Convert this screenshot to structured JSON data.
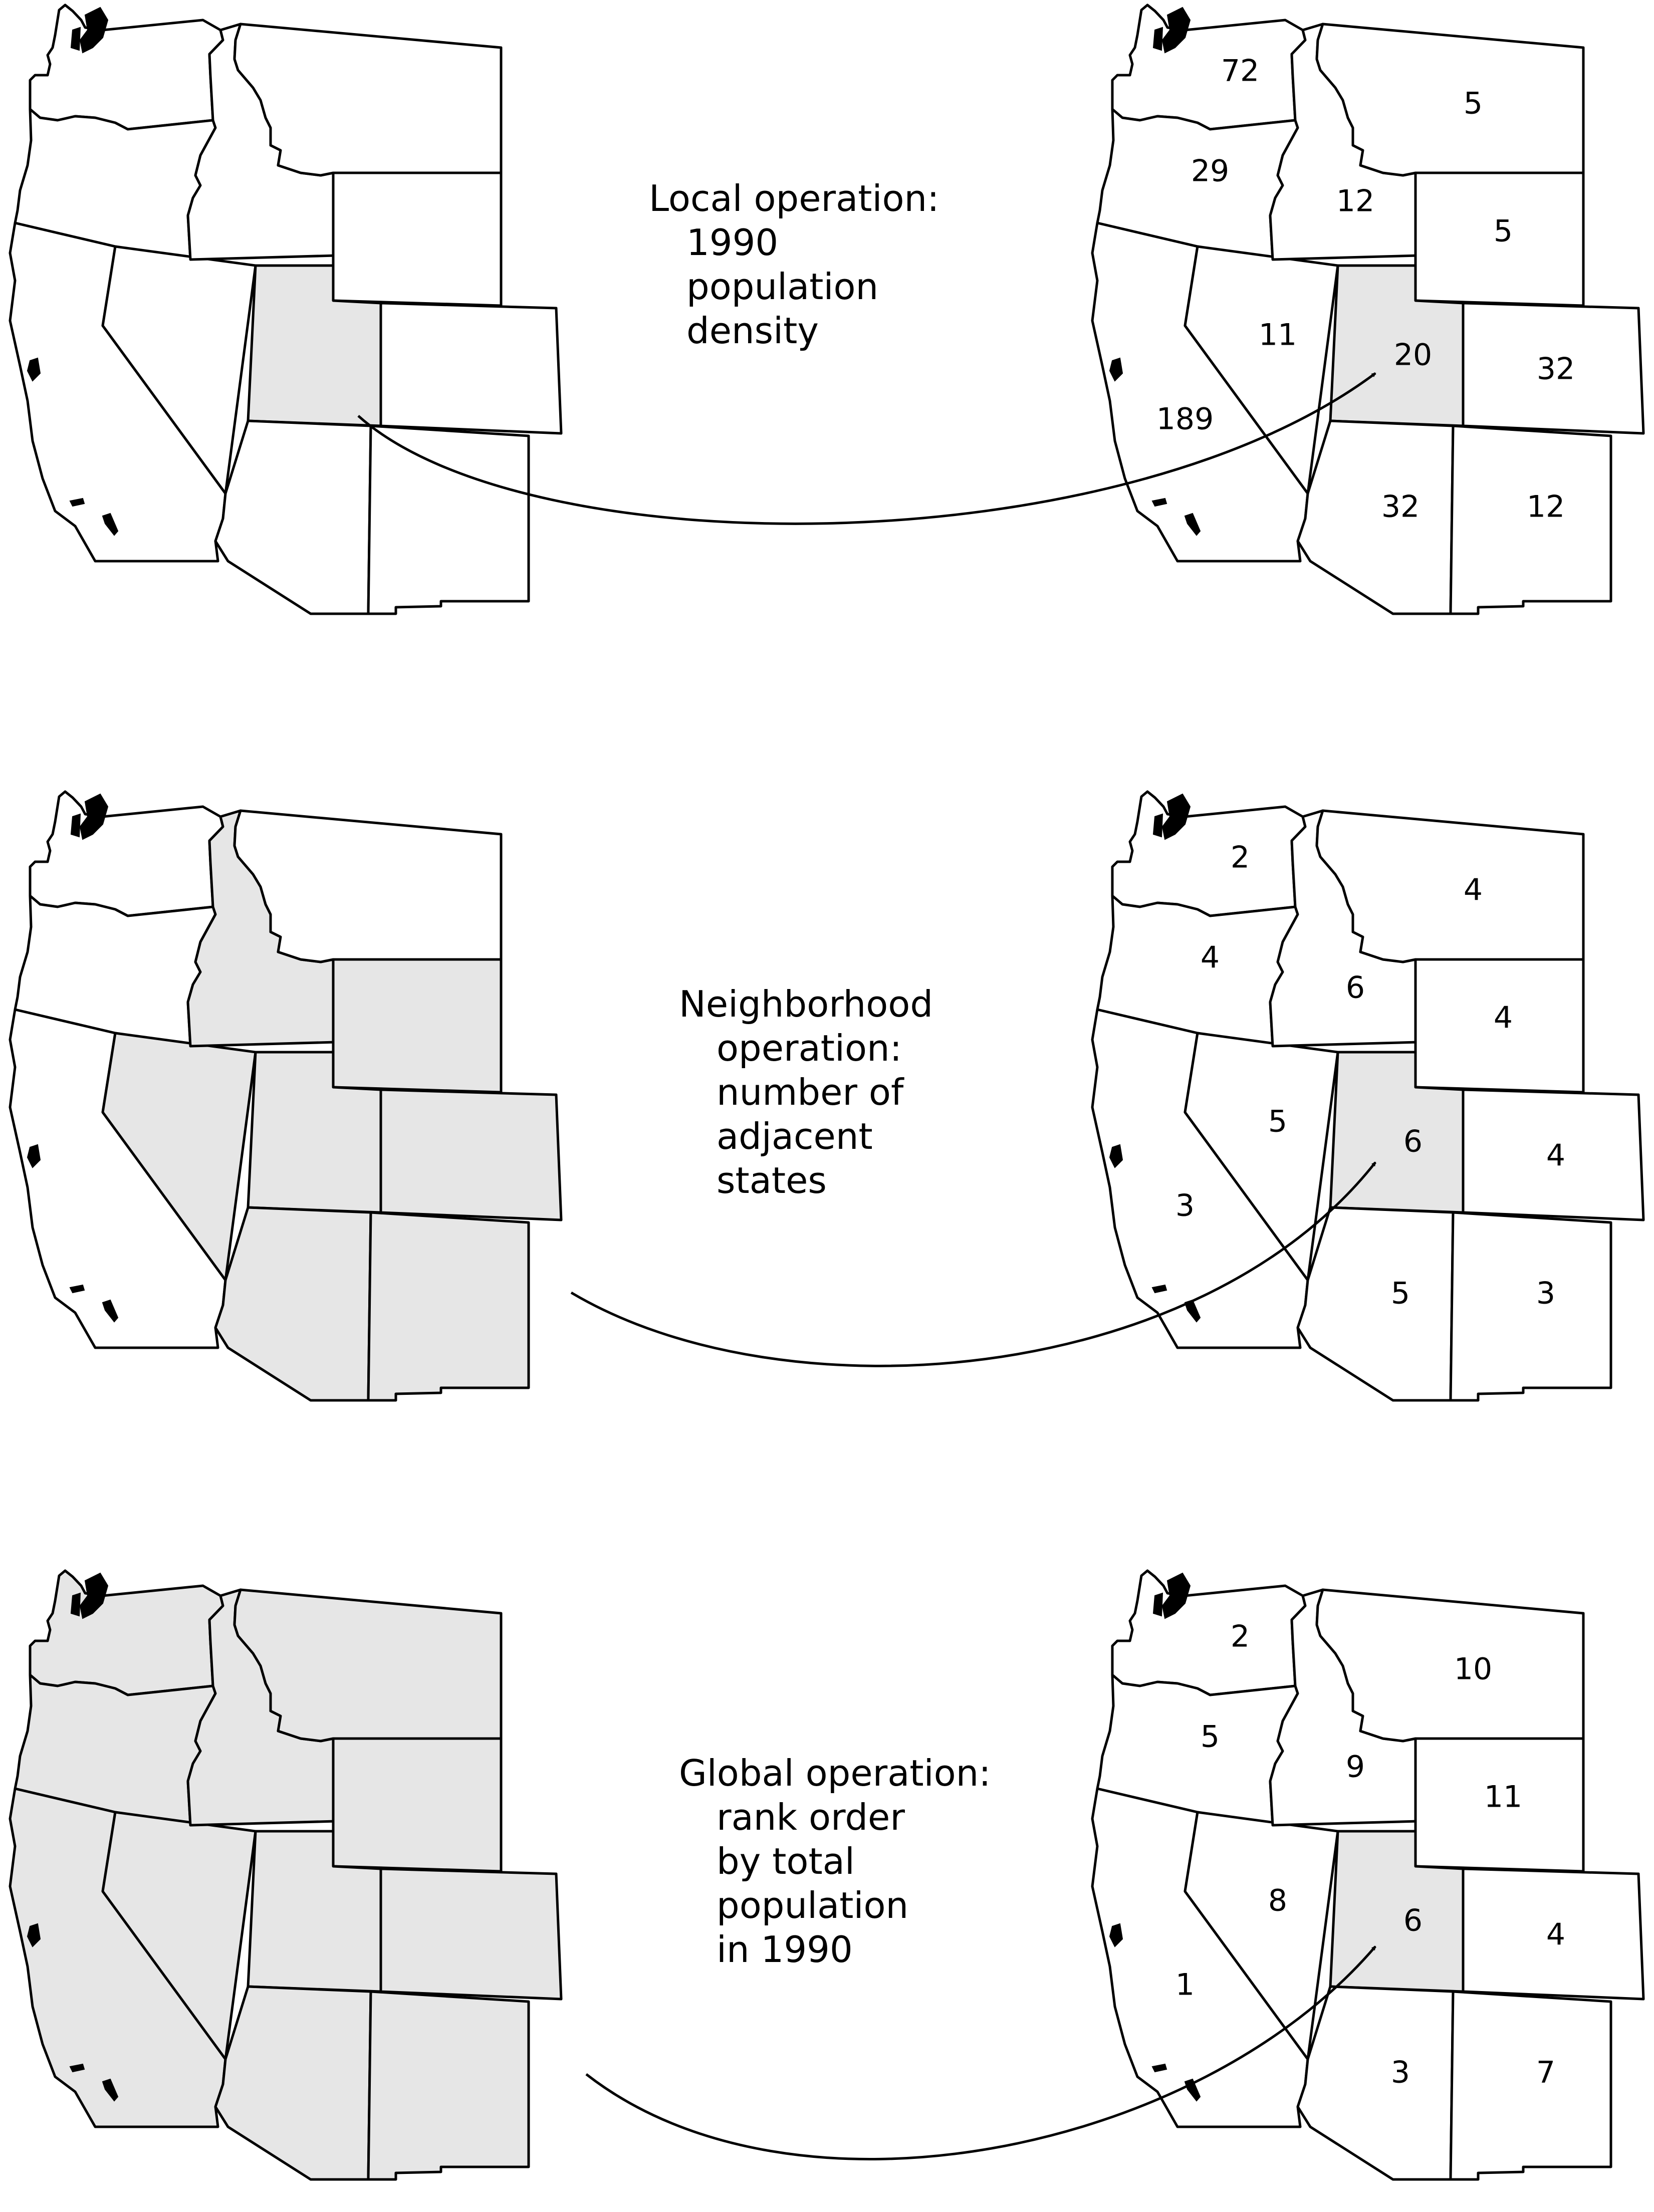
{
  "colors": {
    "highlight": "#e6e6e6",
    "outline": "#000000",
    "background": "#ffffff"
  },
  "panels": [
    {
      "id": "local",
      "caption": [
        "Local operation:",
        "1990",
        "population",
        "density"
      ],
      "input_highlight": [
        "UT"
      ],
      "output_highlight": [
        "UT"
      ],
      "values": {
        "WA": "72",
        "OR": "29",
        "CA": "189",
        "ID": "12",
        "NV": "11",
        "MT": "5",
        "WY": "5",
        "UT": "20",
        "CO": "32",
        "AZ": "32",
        "NM": "12"
      }
    },
    {
      "id": "neighborhood",
      "caption": [
        "Neighborhood",
        "operation:",
        "number of",
        "adjacent",
        "states"
      ],
      "input_highlight": [
        "ID",
        "NV",
        "WY",
        "UT",
        "CO",
        "AZ",
        "NM"
      ],
      "output_highlight": [
        "UT"
      ],
      "values": {
        "WA": "2",
        "OR": "4",
        "CA": "3",
        "ID": "6",
        "NV": "5",
        "MT": "4",
        "WY": "4",
        "UT": "6",
        "CO": "4",
        "AZ": "5",
        "NM": "3"
      }
    },
    {
      "id": "global",
      "caption": [
        "Global operation:",
        "rank order",
        "by total",
        "population",
        "in 1990"
      ],
      "input_highlight": [
        "WA",
        "OR",
        "CA",
        "ID",
        "NV",
        "MT",
        "WY",
        "UT",
        "CO",
        "AZ",
        "NM"
      ],
      "output_highlight": [
        "UT"
      ],
      "values": {
        "WA": "2",
        "OR": "5",
        "CA": "1",
        "ID": "9",
        "NV": "8",
        "MT": "10",
        "WY": "11",
        "UT": "6",
        "CO": "4",
        "AZ": "3",
        "NM": "7"
      }
    }
  ]
}
